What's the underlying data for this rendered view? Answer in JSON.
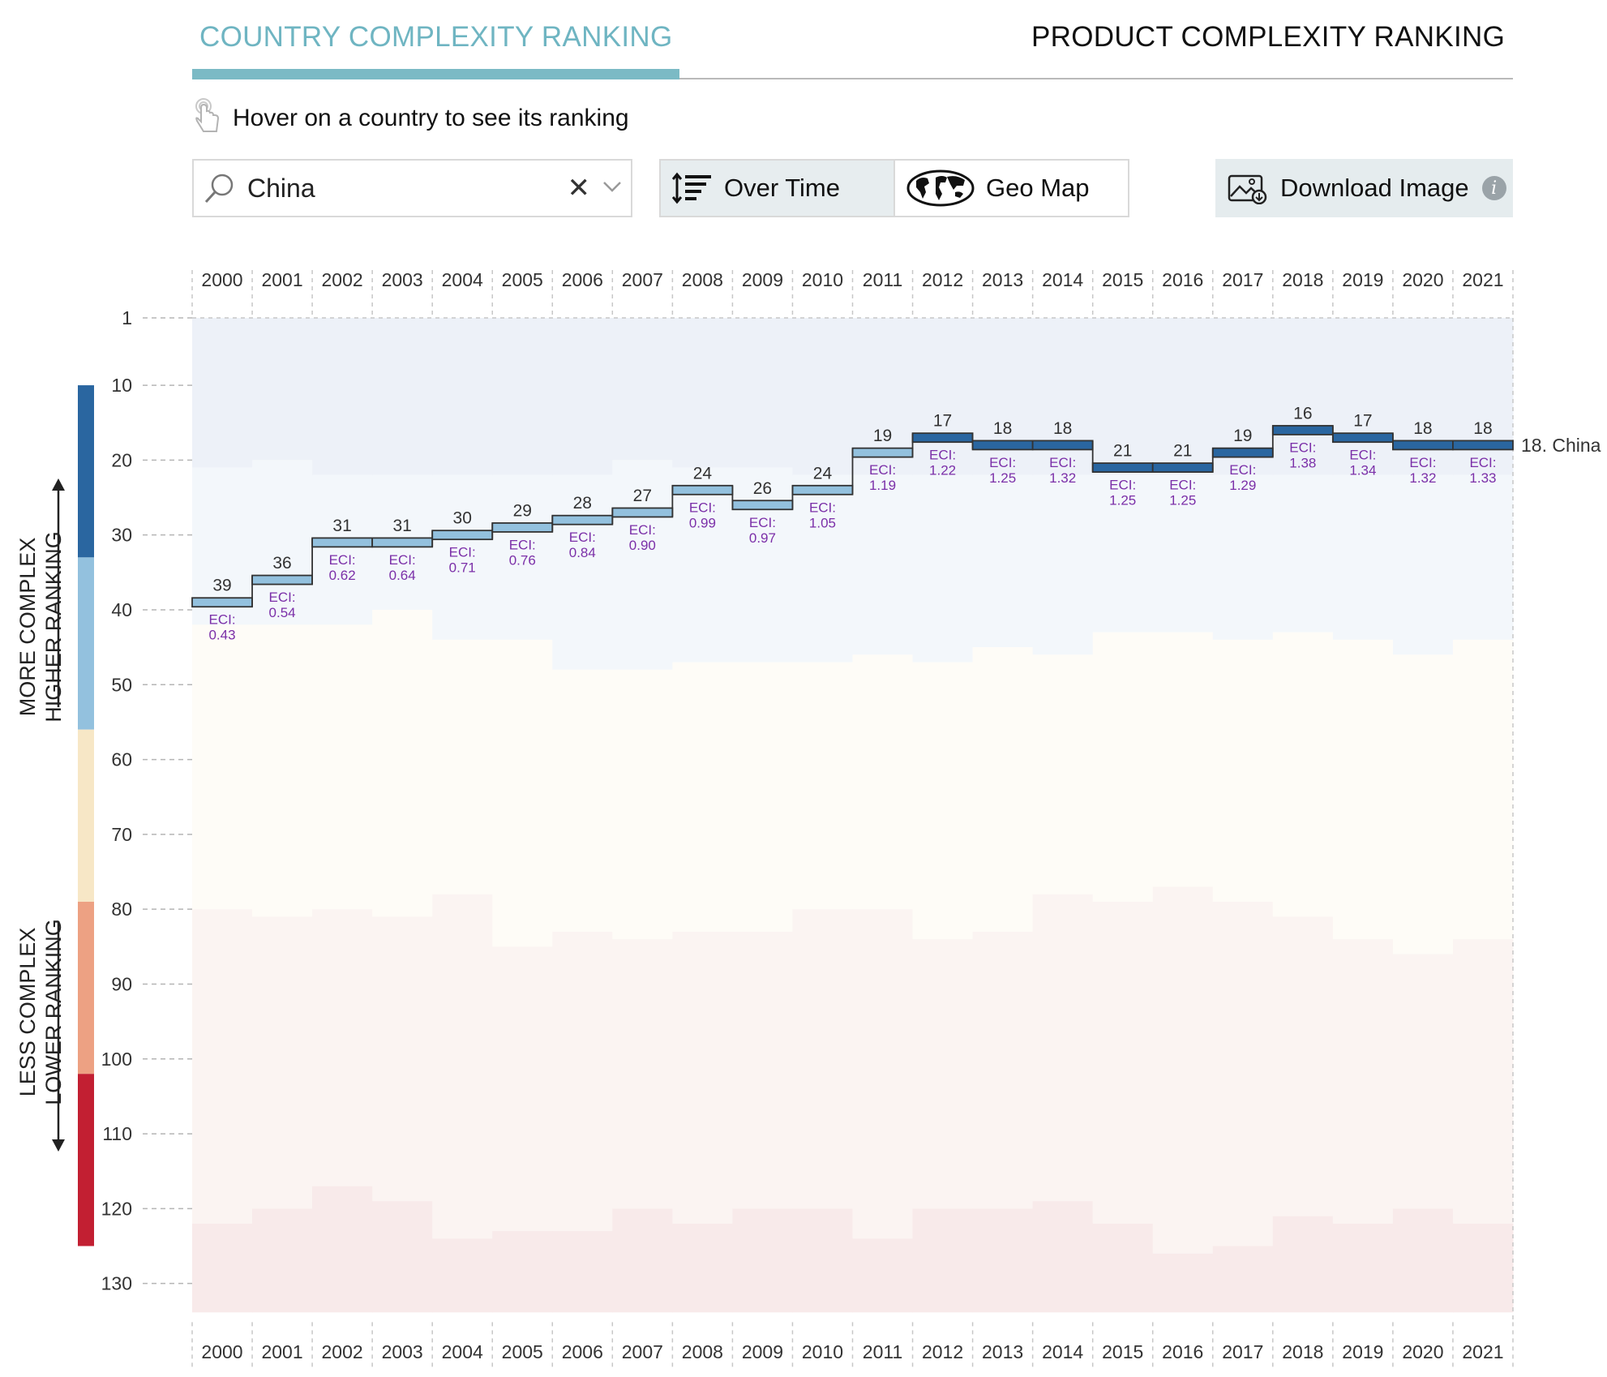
{
  "tabs": [
    {
      "label": "COUNTRY COMPLEXITY RANKING",
      "active": true
    },
    {
      "label": "PRODUCT COMPLEXITY RANKING",
      "active": false
    }
  ],
  "hint": {
    "text": "Hover on a country to see its ranking",
    "icon": "pointer-hand-icon"
  },
  "search": {
    "value": "China",
    "placeholder": "",
    "icons": [
      "search-icon",
      "clear-icon",
      "chevron-down-icon"
    ]
  },
  "view_toggle": {
    "options": [
      {
        "label": "Over Time",
        "icon": "sort-bars-icon",
        "selected": true
      },
      {
        "label": "Geo Map",
        "icon": "globe-map-icon",
        "selected": false
      }
    ]
  },
  "download": {
    "label": "Download Image",
    "icon": "image-download-icon",
    "info_icon": "info-icon",
    "info_glyph": "i"
  },
  "axis_captions": {
    "more": [
      "MORE COMPLEX",
      "HIGHER RANKING"
    ],
    "less": [
      "LESS COMPLEX",
      "LOWER RANKING"
    ]
  },
  "colors": {
    "accent": "#6fb5c2",
    "eci_text": "#7b2fa8",
    "rank_band_top": "#2a66a0",
    "rank_band_upper": "#93c1de",
    "rank_band_mid": "#f7e7c6",
    "rank_band_lower": "#eda183",
    "rank_band_bottom": "#c21f32"
  },
  "chart_data": {
    "type": "line",
    "step": true,
    "years": [
      "2000",
      "2001",
      "2002",
      "2003",
      "2004",
      "2005",
      "2006",
      "2007",
      "2008",
      "2009",
      "2010",
      "2011",
      "2012",
      "2013",
      "2014",
      "2015",
      "2016",
      "2017",
      "2018",
      "2019",
      "2020",
      "2021"
    ],
    "y_ticks": [
      1,
      10,
      20,
      30,
      40,
      50,
      60,
      70,
      80,
      90,
      100,
      110,
      120,
      130
    ],
    "ylim": [
      1,
      133
    ],
    "y_inverted": true,
    "series": [
      {
        "name": "China",
        "ranks": [
          39,
          36,
          31,
          31,
          30,
          29,
          28,
          27,
          24,
          26,
          24,
          19,
          17,
          18,
          18,
          21,
          21,
          19,
          16,
          17,
          18,
          18
        ],
        "eci": [
          "0.43",
          "0.54",
          "0.62",
          "0.64",
          "0.71",
          "0.76",
          "0.84",
          "0.90",
          "0.99",
          "0.97",
          "1.05",
          "1.19",
          "1.22",
          "1.25",
          "1.32",
          "1.25",
          "1.25",
          "1.29",
          "1.38",
          "1.34",
          "1.32",
          "1.33"
        ]
      }
    ],
    "eci_prefix": "ECI:",
    "end_label": "18. China",
    "background_zone_edges": {
      "upper_lower_edge": [
        21,
        20,
        22,
        22,
        22,
        22,
        22,
        20,
        21,
        21,
        22,
        22,
        22,
        22,
        22,
        22,
        22,
        22,
        22,
        22,
        22,
        22
      ],
      "mid_top_edge": [
        42,
        42,
        42,
        40,
        44,
        44,
        48,
        48,
        47,
        47,
        47,
        46,
        47,
        45,
        46,
        43,
        43,
        44,
        43,
        44,
        46,
        44
      ],
      "mid_bottom_edge": [
        80,
        81,
        80,
        81,
        78,
        85,
        83,
        84,
        83,
        83,
        80,
        80,
        84,
        83,
        78,
        79,
        77,
        79,
        81,
        84,
        86,
        84
      ],
      "bottom_zone_top": [
        122,
        120,
        117,
        119,
        124,
        123,
        123,
        120,
        122,
        120,
        120,
        124,
        120,
        120,
        119,
        122,
        126,
        125,
        121,
        122,
        120,
        122
      ]
    },
    "rank_bands": [
      {
        "from": 10,
        "to": 33,
        "color": "#2a66a0"
      },
      {
        "from": 33,
        "to": 56,
        "color": "#93c1de"
      },
      {
        "from": 56,
        "to": 79,
        "color": "#f7e7c6"
      },
      {
        "from": 79,
        "to": 102,
        "color": "#eda183"
      },
      {
        "from": 102,
        "to": 125,
        "color": "#c21f32"
      }
    ],
    "segment_colors": {
      "ranked_1_to_17": "#2a66a0",
      "ranked_18_plus": "#93c1de",
      "rank_threshold_dark": 18
    }
  }
}
